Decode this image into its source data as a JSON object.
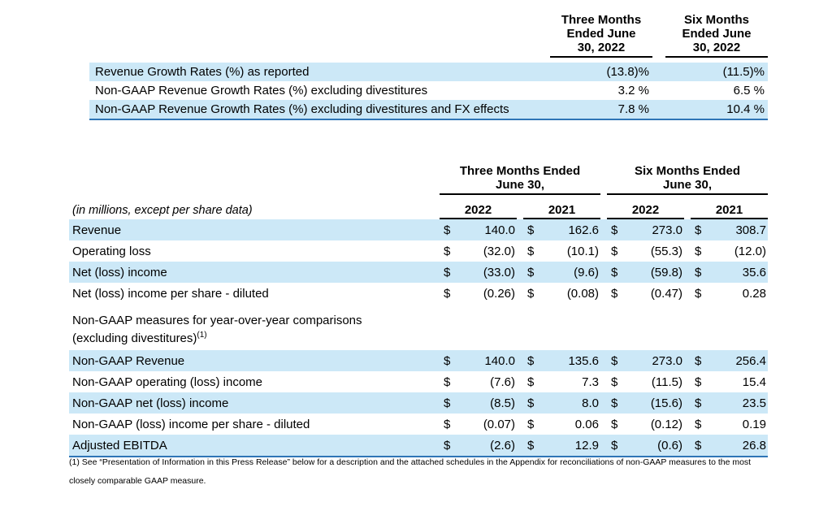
{
  "colors": {
    "row_shade": "#cce8f7",
    "table_border": "#2e75b6"
  },
  "growth_table": {
    "headers": [
      {
        "lines": [
          "Three Months",
          "Ended June",
          "30, 2022"
        ]
      },
      {
        "lines": [
          "Six Months",
          "Ended June",
          "30, 2022"
        ]
      }
    ],
    "rows": [
      {
        "label": "Revenue Growth Rates (%) as reported",
        "values": [
          "(13.8)%",
          "(11.5)%"
        ]
      },
      {
        "label": "Non-GAAP Revenue Growth Rates (%) excluding divestitures",
        "values": [
          "3.2 %",
          "6.5 %"
        ]
      },
      {
        "label": "Non-GAAP Revenue Growth Rates (%) excluding divestitures and FX effects",
        "values": [
          "7.8 %",
          "10.4 %"
        ]
      }
    ]
  },
  "financial_table": {
    "group_headers": [
      {
        "line1": "Three Months Ended",
        "line2": "June 30,"
      },
      {
        "line1": "Six Months Ended",
        "line2": "June 30,"
      }
    ],
    "note": "(in millions, except per share data)",
    "year_headers": [
      "2022",
      "2021",
      "2022",
      "2021"
    ],
    "currency": "$",
    "gaap_rows": [
      {
        "label": "Revenue",
        "values": [
          "140.0",
          "162.6",
          "273.0",
          "308.7"
        ]
      },
      {
        "label": "Operating loss",
        "values": [
          "(32.0)",
          "(10.1)",
          "(55.3)",
          "(12.0)"
        ]
      },
      {
        "label": "Net (loss) income",
        "values": [
          "(33.0)",
          "(9.6)",
          "(59.8)",
          "35.6"
        ]
      },
      {
        "label": "Net (loss) income per share - diluted",
        "values": [
          "(0.26)",
          "(0.08)",
          "(0.47)",
          "0.28"
        ]
      }
    ],
    "section_header": {
      "line1": "Non-GAAP measures for year-over-year comparisons",
      "line2": "(excluding divestitures)",
      "sup": "(1)"
    },
    "non_gaap_rows": [
      {
        "label": "Non-GAAP Revenue",
        "values": [
          "140.0",
          "135.6",
          "273.0",
          "256.4"
        ]
      },
      {
        "label": "Non-GAAP operating (loss) income",
        "values": [
          "(7.6)",
          "7.3",
          "(11.5)",
          "15.4"
        ]
      },
      {
        "label": "Non-GAAP net (loss) income",
        "values": [
          "(8.5)",
          "8.0",
          "(15.6)",
          "23.5"
        ]
      },
      {
        "label": "Non-GAAP (loss) income per share - diluted",
        "values": [
          "(0.07)",
          "0.06",
          "(0.12)",
          "0.19"
        ]
      },
      {
        "label": "Adjusted EBITDA",
        "values": [
          "(2.6)",
          "12.9",
          "(0.6)",
          "26.8"
        ]
      }
    ]
  },
  "footnote": {
    "text": "(1) See “Presentation of Information in this Press Release” below for a description and the attached schedules in the Appendix for reconciliations of non-GAAP measures to the most closely comparable GAAP measure."
  }
}
